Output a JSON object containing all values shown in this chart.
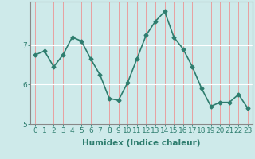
{
  "x": [
    0,
    1,
    2,
    3,
    4,
    5,
    6,
    7,
    8,
    9,
    10,
    11,
    12,
    13,
    14,
    15,
    16,
    17,
    18,
    19,
    20,
    21,
    22,
    23
  ],
  "y": [
    6.75,
    6.85,
    6.45,
    6.75,
    7.2,
    7.1,
    6.65,
    6.25,
    5.65,
    5.6,
    6.05,
    6.65,
    7.25,
    7.6,
    7.85,
    7.2,
    6.9,
    6.45,
    5.9,
    5.45,
    5.55,
    5.55,
    5.75,
    5.4
  ],
  "line_color": "#2e7d6e",
  "marker": "D",
  "marker_size": 2.5,
  "background_color": "#ceeaea",
  "grid_color_x": "#e8a0a0",
  "grid_color_y": "#ffffff",
  "xlabel": "Humidex (Indice chaleur)",
  "yticks": [
    5,
    6,
    7
  ],
  "xtick_labels": [
    "0",
    "1",
    "2",
    "3",
    "4",
    "5",
    "6",
    "7",
    "8",
    "9",
    "10",
    "11",
    "12",
    "13",
    "14",
    "15",
    "16",
    "17",
    "18",
    "19",
    "20",
    "21",
    "22",
    "23"
  ],
  "xlim": [
    -0.5,
    23.5
  ],
  "ylim": [
    5.0,
    8.1
  ],
  "linewidth": 1.2,
  "xlabel_fontsize": 7.5,
  "tick_fontsize": 6.5,
  "spine_color": "#888888"
}
